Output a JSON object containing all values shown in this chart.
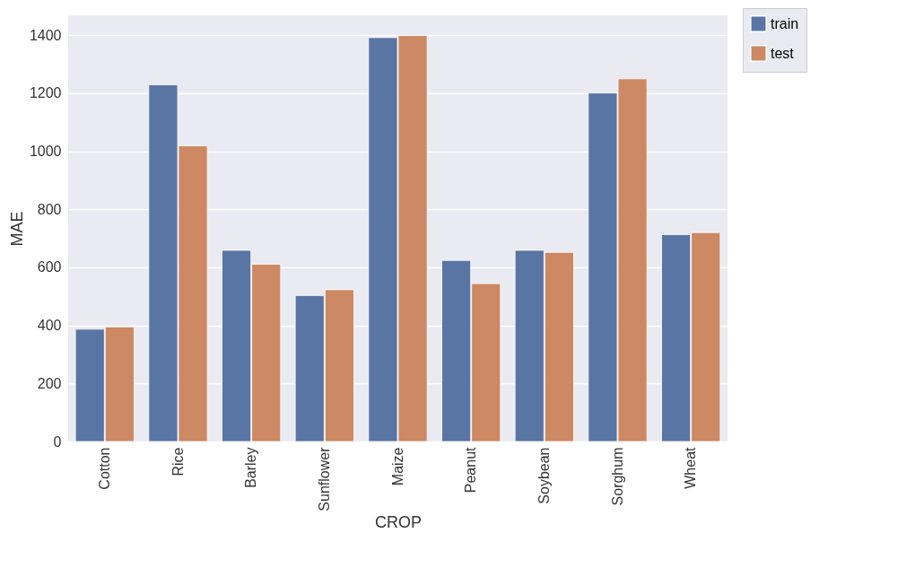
{
  "chart_data": {
    "type": "bar",
    "xlabel": "CROP",
    "ylabel": "MAE",
    "categories": [
      "Cotton",
      "Rice",
      "Barley",
      "Sunflower",
      "Maize",
      "Peanut",
      "Soybean",
      "Sorghum",
      "Wheat"
    ],
    "series": [
      {
        "name": "train",
        "color": "#5975a4",
        "values": [
          387,
          1229,
          659,
          503,
          1392,
          624,
          659,
          1201,
          713
        ]
      },
      {
        "name": "test",
        "color": "#cc8963",
        "values": [
          395,
          1019,
          611,
          523,
          1399,
          544,
          652,
          1250,
          720
        ]
      }
    ],
    "ylim": [
      0,
      1469
    ],
    "yticks": [
      0,
      200,
      400,
      600,
      800,
      1000,
      1200,
      1400
    ],
    "grid": "y",
    "legend": "top right"
  }
}
